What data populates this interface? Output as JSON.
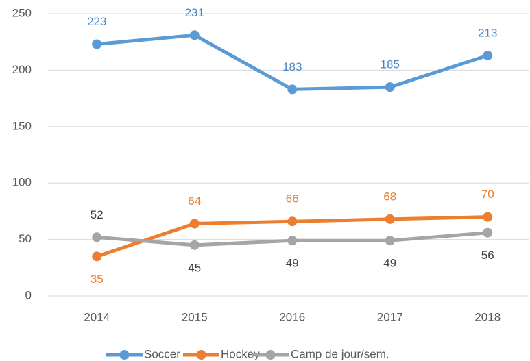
{
  "chart_data": {
    "type": "line",
    "categories": [
      "2014",
      "2015",
      "2016",
      "2017",
      "2018"
    ],
    "series": [
      {
        "name": "Soccer",
        "color": "#5b9bd5",
        "label_color": "#4a86c5",
        "values": [
          223,
          231,
          183,
          185,
          213
        ]
      },
      {
        "name": "Hockey",
        "color": "#ed7d31",
        "label_color": "#ed7d31",
        "values": [
          35,
          64,
          66,
          68,
          70
        ]
      },
      {
        "name": "Camp de jour/sem.",
        "color": "#a5a5a5",
        "label_color": "#404040",
        "values": [
          52,
          45,
          49,
          49,
          56
        ]
      }
    ],
    "ylim": [
      0,
      250
    ],
    "yticks": [
      0,
      50,
      100,
      150,
      200,
      250
    ],
    "grid": true,
    "legend": "bottom"
  }
}
